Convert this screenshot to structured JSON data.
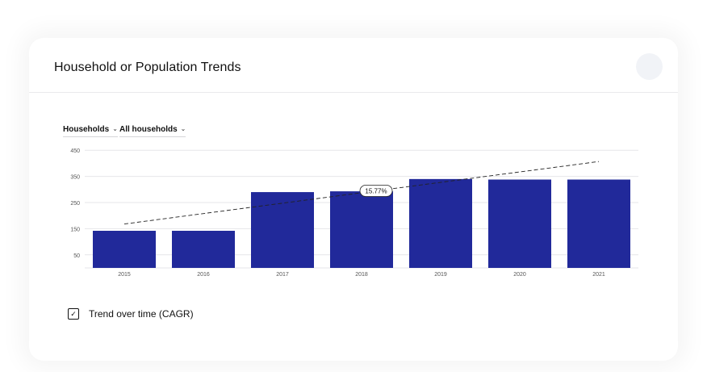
{
  "card": {
    "title": "Household or Population Trends"
  },
  "filters": {
    "measure": "Households",
    "segment": "All households"
  },
  "trend_toggle": {
    "label": "Trend over time (CAGR)",
    "checked": true
  },
  "colors": {
    "bar": "#21299a",
    "grid": "#e6e6e9",
    "trend_line": "#222222"
  },
  "chart_data": {
    "type": "bar",
    "categories": [
      "2015",
      "2016",
      "2017",
      "2018",
      "2019",
      "2020",
      "2021"
    ],
    "values": [
      142,
      142,
      290,
      293,
      340,
      338,
      338
    ],
    "yticks": [
      50,
      150,
      250,
      350,
      450
    ],
    "ylim": [
      0,
      460
    ],
    "grid": true,
    "trend": {
      "start_value": 168,
      "end_value": 407,
      "label": "15.77%"
    }
  }
}
